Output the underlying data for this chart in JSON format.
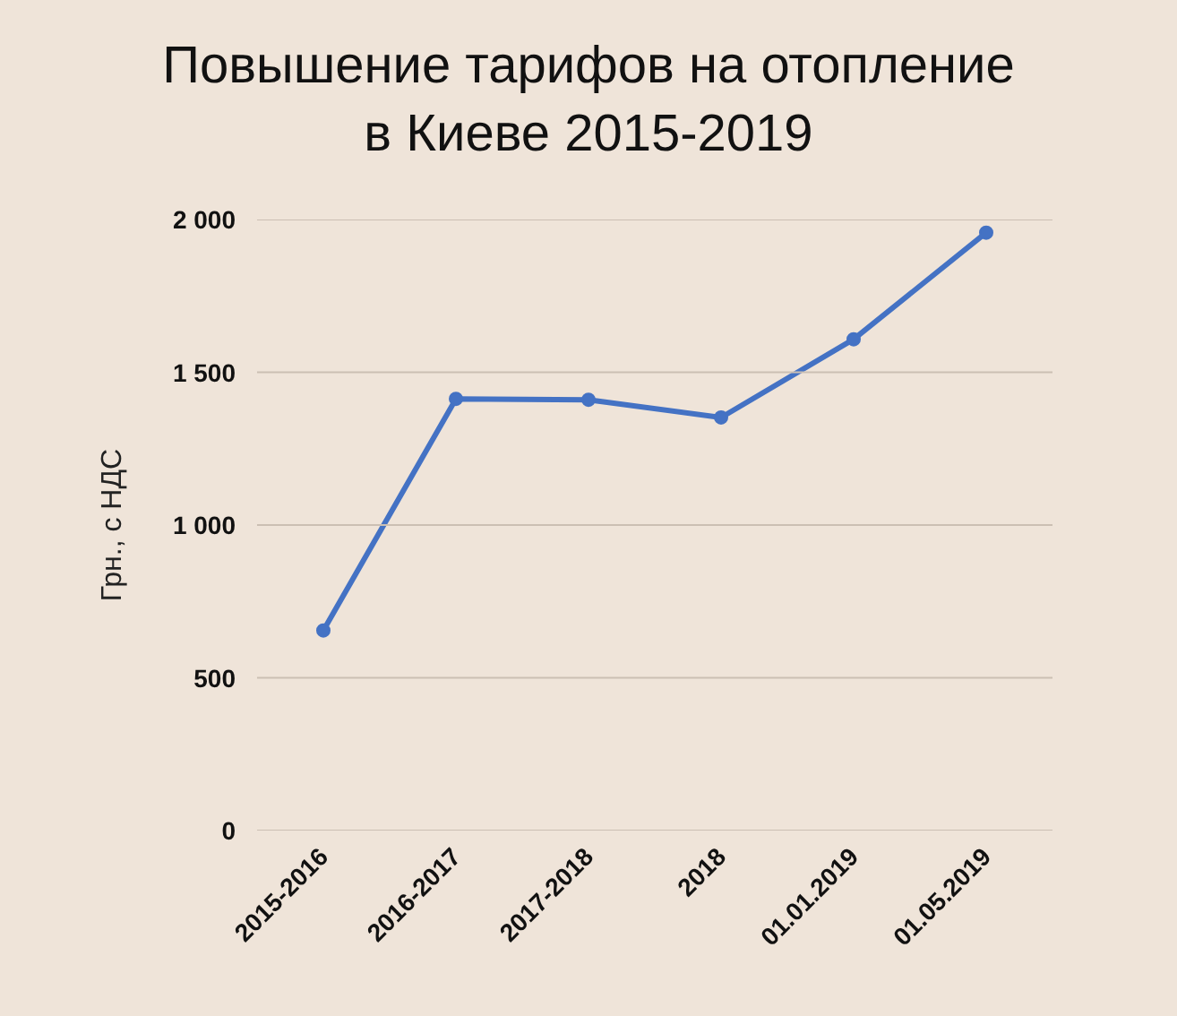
{
  "chart_data": {
    "type": "line",
    "title": "Повышение тарифов на отопление\nв Киеве 2015-2019",
    "ylabel": "Грн., с НДС",
    "categories": [
      "2015-2016",
      "2016-2017",
      "2017-2018",
      "2018",
      "01.01.2019",
      "01.05.2019"
    ],
    "series": [
      {
        "color": "#4472c4",
        "values": [
          655,
          1413,
          1410,
          1352,
          1608,
          1957
        ]
      }
    ],
    "ylim": [
      0,
      2000
    ],
    "yticks": [
      0,
      500,
      {
        "value": 1000,
        "label": "1 000"
      },
      {
        "value": 1500,
        "label": "1 500"
      },
      {
        "value": 2000,
        "label": "2 000"
      }
    ],
    "grid": "y",
    "marker": "circle",
    "line_style": "solid"
  }
}
